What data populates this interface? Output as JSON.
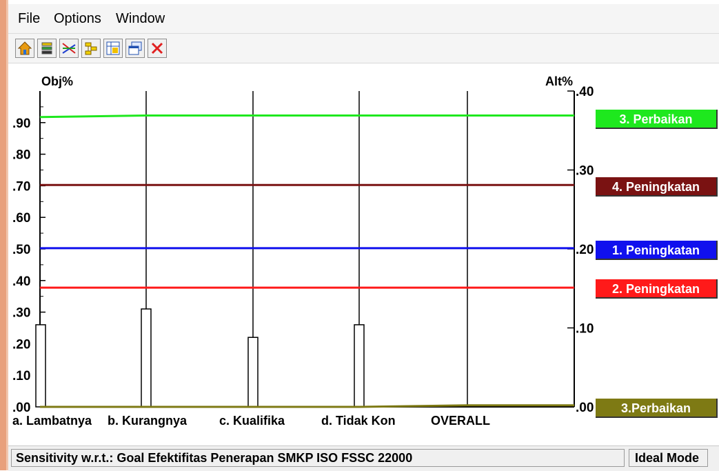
{
  "menu": {
    "file": "File",
    "options": "Options",
    "window": "Window"
  },
  "toolbar": {
    "buttons": [
      "home-icon",
      "stack-icon",
      "crossing-lines-icon",
      "hierarchy-icon",
      "grid-icon",
      "window-icon",
      "close-icon"
    ]
  },
  "chart_data": {
    "type": "bar",
    "left_axis_label": "Obj%",
    "right_axis_label": "Alt%",
    "left_ylim": [
      0,
      1.0
    ],
    "right_ylim": [
      0,
      0.4
    ],
    "left_ticks": [
      ".00",
      ".10",
      ".20",
      ".30",
      ".40",
      ".50",
      ".60",
      ".70",
      ".80",
      ".90"
    ],
    "right_ticks": [
      ".00",
      ".10",
      ".20",
      ".30",
      ".40"
    ],
    "categories": [
      "a. Lambatnya",
      "b. Kurangnya",
      "c. Kualifika",
      "d. Tidak Kon",
      "OVERALL"
    ],
    "bars": [
      0.26,
      0.31,
      0.22,
      0.26
    ],
    "series": [
      {
        "name": "3. Perbaikan",
        "color": "#1ee81e",
        "values": [
          0.367,
          0.369,
          0.369,
          0.369,
          0.369
        ]
      },
      {
        "name": "4. Peningkatan",
        "color": "#7a1212",
        "values": [
          0.281,
          0.281,
          0.281,
          0.281,
          0.281
        ]
      },
      {
        "name": "1. Peningkatan",
        "color": "#1010ee",
        "values": [
          0.201,
          0.201,
          0.201,
          0.201,
          0.201
        ]
      },
      {
        "name": "2. Peningkatan",
        "color": "#ff1a1a",
        "values": [
          0.151,
          0.151,
          0.151,
          0.151,
          0.151
        ]
      },
      {
        "name": "3.Perbaikan",
        "color": "#7e7a14",
        "values": [
          0.0,
          0.0,
          0.0,
          0.0,
          0.002
        ]
      }
    ]
  },
  "legend": [
    "3. Perbaikan",
    "4. Peningkatan",
    "1. Peningkatan",
    "2. Peningkatan",
    "3.Perbaikan"
  ],
  "status": {
    "text": "Sensitivity w.r.t.: Goal Efektifitas Penerapan SMKP ISO FSSC 22000",
    "mode": "Ideal Mode"
  }
}
